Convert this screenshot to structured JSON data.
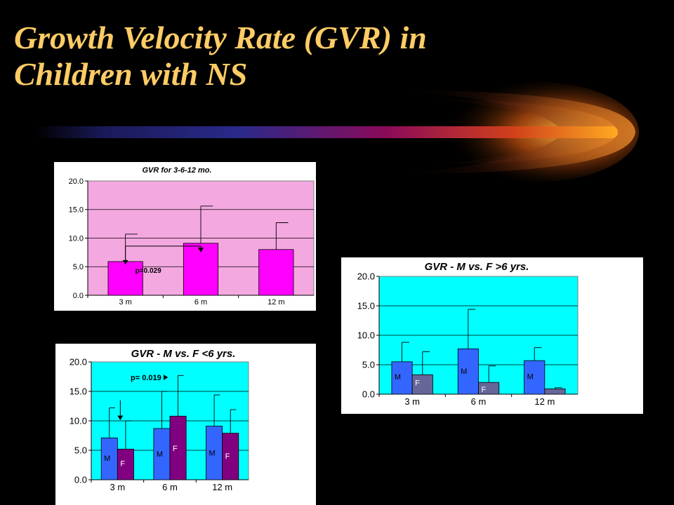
{
  "slide": {
    "title_line1": "Growth Velocity Rate (GVR) in",
    "title_line2": "Children with NS"
  },
  "colors": {
    "background": "#000000",
    "title": "#ffcc66",
    "plot_pink": "#f4a8e0",
    "bar_magenta": "#ff00ff",
    "plot_cyan": "#00ffff",
    "bar_male": "#3366ff",
    "bar_female_gt6": "#666699",
    "bar_female_lt6": "#800080"
  },
  "chart_data": [
    {
      "id": "chart1",
      "type": "bar",
      "title": "GVR for 3-6-12 mo.",
      "categories": [
        "3 m",
        "6 m",
        "12 m"
      ],
      "series": [
        {
          "values": [
            5.9,
            9.1,
            8.0
          ],
          "errors": [
            4.8,
            6.5,
            4.7
          ],
          "color": "#ff00ff"
        }
      ],
      "ylim": [
        0,
        20
      ],
      "yticks": [
        "0.0",
        "5.0",
        "10.0",
        "15.0",
        "20.0"
      ],
      "grid": true,
      "annotation": "p=0.029",
      "plot_background": "#f4a8e0"
    },
    {
      "id": "chart2",
      "type": "bar",
      "title": "GVR - M vs. F >6 yrs.",
      "categories": [
        "3 m",
        "6 m",
        "12 m"
      ],
      "series": [
        {
          "values": [
            5.5,
            7.7,
            5.7
          ],
          "errors": [
            3.3,
            6.7,
            2.2
          ],
          "color": "#3366ff",
          "bar_labels": [
            "M",
            "M",
            "M"
          ]
        },
        {
          "values": [
            3.3,
            2.0,
            0.9
          ],
          "errors": [
            3.9,
            2.8,
            0.2
          ],
          "color": "#666699",
          "bar_labels": [
            "F",
            "F",
            ""
          ]
        }
      ],
      "ylim": [
        0,
        20
      ],
      "yticks": [
        "0.0",
        "5.0",
        "10.0",
        "15.0",
        "20.0"
      ],
      "grid": true,
      "plot_background": "#00ffff"
    },
    {
      "id": "chart3",
      "type": "bar",
      "title": "GVR - M vs. F <6 yrs.",
      "categories": [
        "3 m",
        "6 m",
        "12 m"
      ],
      "series": [
        {
          "values": [
            7.1,
            8.7,
            9.1
          ],
          "errors": [
            5.1,
            6.3,
            5.3
          ],
          "color": "#3366ff",
          "bar_labels": [
            "M",
            "M",
            "M"
          ]
        },
        {
          "values": [
            5.2,
            10.8,
            7.9
          ],
          "errors": [
            4.8,
            6.9,
            4.0
          ],
          "color": "#800080",
          "bar_labels": [
            "F",
            "F",
            "F"
          ]
        }
      ],
      "ylim": [
        0,
        20
      ],
      "yticks": [
        "0.0",
        "5.0",
        "10.0",
        "15.0",
        "20.0"
      ],
      "grid": true,
      "annotation": "p= 0.019",
      "plot_background": "#00ffff"
    }
  ]
}
